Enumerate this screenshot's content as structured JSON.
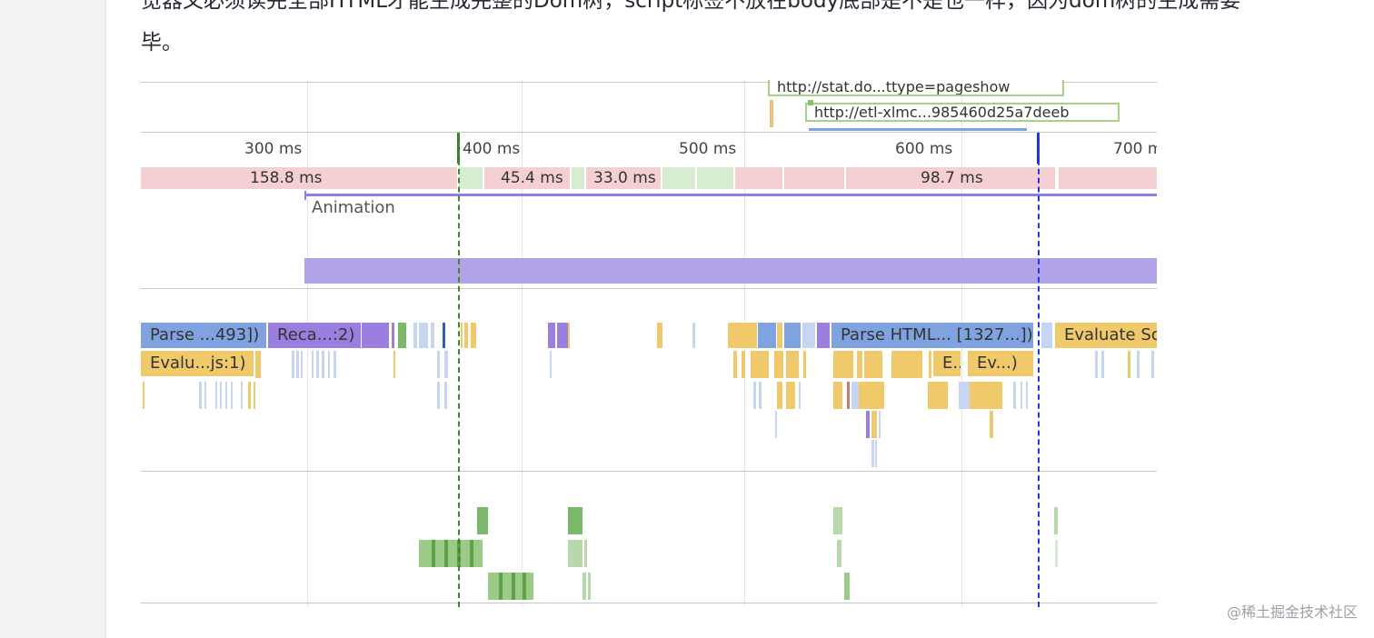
{
  "article": {
    "paragraph_line1": "览器又必须读完全部HTML才能生成完整的Dom树，script标签不放在body底部是不是也一样，因为dom树的生成需要",
    "paragraph_line2": "毕。"
  },
  "timeline": {
    "network": [
      {
        "label": "http://stat.do...ttype=pageshow"
      },
      {
        "label": "http://etl-xlmc...985460d25a7deeb"
      }
    ],
    "ticks": [
      "300 ms",
      "400 ms",
      "500 ms",
      "600 ms",
      "700 ms"
    ],
    "frame_labels": [
      "158.8 ms",
      "45.4 ms",
      "33.0 ms",
      "98.7 ms"
    ],
    "animation_label": "Animation",
    "main_tasks": [
      {
        "label": "Parse ...493])"
      },
      {
        "label": "Reca...:2)"
      },
      {
        "label": "Parse HTML... [1327...])"
      },
      {
        "label": "Evaluate Sc"
      },
      {
        "label": "Evalu...js:1)"
      },
      {
        "label": "E..."
      },
      {
        "label": "Ev...)"
      }
    ],
    "colors": {
      "parse_html": "#7fa3e0",
      "recalc_style": "#9b7fe0",
      "scripting": "#f0c96a",
      "frame_dropped": "#f4d0d2",
      "frame_ok": "#d8edd0",
      "raster": "#7bb86a",
      "animation": "#b2a3e8",
      "dcl_marker": "#3a8a2e",
      "fmp_marker": "#2238e0"
    }
  },
  "watermark": "@稀土掘金技术社区"
}
